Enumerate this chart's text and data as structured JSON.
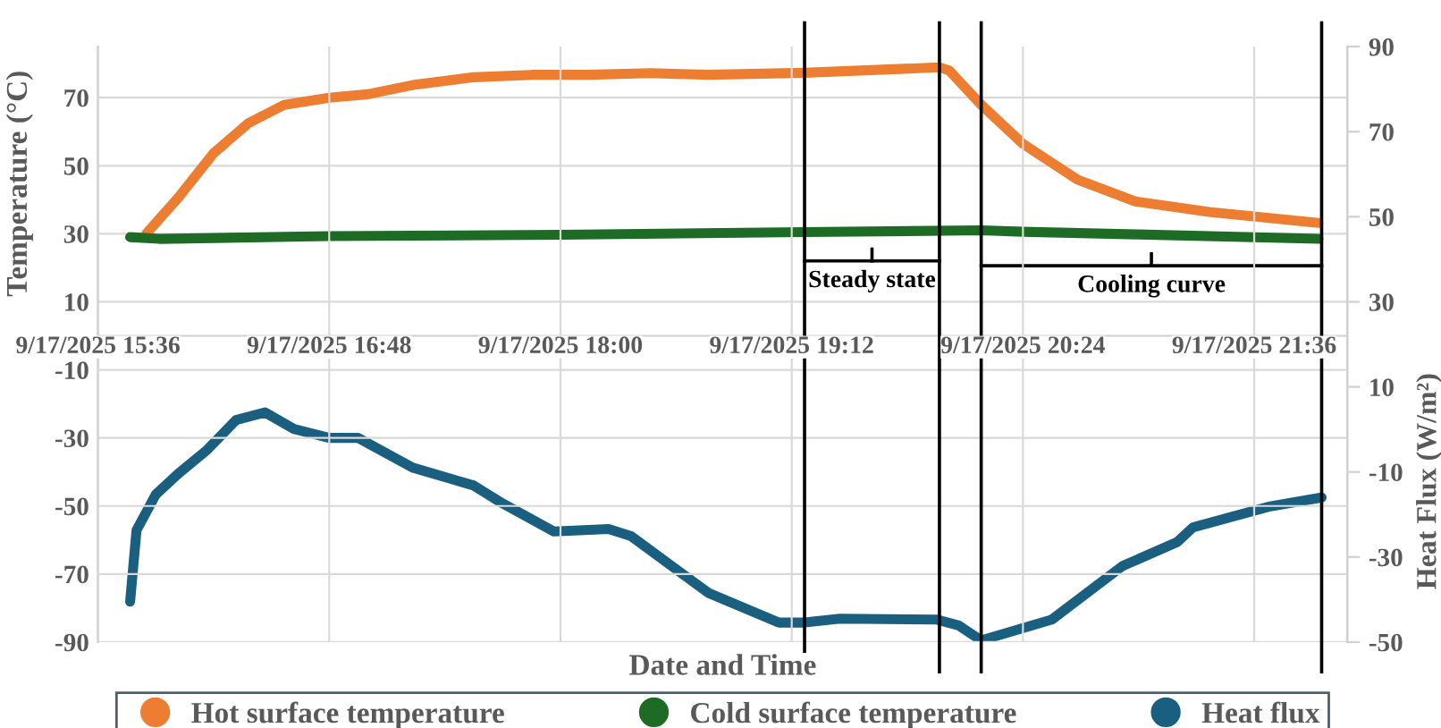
{
  "chart_data": {
    "type": "line",
    "xlabel": "Date and Time",
    "ylabel": "Temperature (°C)",
    "y2label": "Heat Flux (W/m²)",
    "xlim": [
      "2025-09-17T15:36",
      "2025-09-17T22:05"
    ],
    "xticks": [
      {
        "value": "2025-09-17T15:36",
        "label": "9/17/2025 15:36"
      },
      {
        "value": "2025-09-17T16:48",
        "label": "9/17/2025 16:48"
      },
      {
        "value": "2025-09-17T18:00",
        "label": "9/17/2025 18:00"
      },
      {
        "value": "2025-09-17T19:12",
        "label": "9/17/2025 19:12"
      },
      {
        "value": "2025-09-17T20:24",
        "label": "9/17/2025 20:24"
      },
      {
        "value": "2025-09-17T21:36",
        "label": "9/17/2025 21:36"
      }
    ],
    "ylim": [
      -90,
      85
    ],
    "yticks": [
      -90,
      -70,
      -50,
      -30,
      -10,
      10,
      30,
      50,
      70
    ],
    "y2lim": [
      -50,
      90
    ],
    "y2ticks": [
      -50,
      -30,
      -10,
      10,
      30,
      50,
      70,
      90
    ],
    "grid": true,
    "legend": "bottom",
    "marker": "none",
    "line_style": "solid",
    "series": [
      {
        "name": "Hot surface temperature",
        "color": "#ed7d31",
        "x": [
          "2025-09-17T15:51",
          "2025-09-17T16:01",
          "2025-09-17T16:12",
          "2025-09-17T16:23",
          "2025-09-17T16:34",
          "2025-09-17T16:48",
          "2025-09-17T17:00",
          "2025-09-17T17:14",
          "2025-09-17T17:33",
          "2025-09-17T17:51",
          "2025-09-17T18:09",
          "2025-09-17T18:28",
          "2025-09-17T18:46",
          "2025-09-17T19:16",
          "2025-09-17T19:58",
          "2025-09-17T20:01",
          "2025-09-17T20:11",
          "2025-09-17T20:24",
          "2025-09-17T20:41",
          "2025-09-17T20:59",
          "2025-09-17T21:22",
          "2025-09-17T21:56"
        ],
        "values": [
          30,
          40.6,
          53.7,
          62.6,
          67.9,
          70,
          71,
          73.7,
          76,
          76.7,
          76.7,
          77.2,
          76.7,
          77.3,
          78.9,
          78,
          67.9,
          56.4,
          45.9,
          39.5,
          36.4,
          33.2
        ]
      },
      {
        "name": "Cold surface temperature",
        "color": "#1e6b25",
        "x": [
          "2025-09-17T15:46",
          "2025-09-17T15:55",
          "2025-09-17T16:48",
          "2025-09-17T18:00",
          "2025-09-17T19:16",
          "2025-09-17T20:11",
          "2025-09-17T20:24",
          "2025-09-17T21:00",
          "2025-09-17T21:56"
        ],
        "values": [
          29,
          28.5,
          29.3,
          29.7,
          30.5,
          31,
          30.6,
          29.8,
          28.5
        ]
      },
      {
        "name": "Heat flux",
        "color": "#1a5f7f",
        "axis": "y2",
        "x": [
          "2025-09-17T15:46",
          "2025-09-17T15:48",
          "2025-09-17T15:54",
          "2025-09-17T16:01",
          "2025-09-17T16:10",
          "2025-09-17T16:19",
          "2025-09-17T16:28",
          "2025-09-17T16:37",
          "2025-09-17T16:48",
          "2025-09-17T16:57",
          "2025-09-17T17:14",
          "2025-09-17T17:33",
          "2025-09-17T17:42",
          "2025-09-17T17:58",
          "2025-09-17T18:15",
          "2025-09-17T18:22",
          "2025-09-17T18:46",
          "2025-09-17T19:08",
          "2025-09-17T19:16",
          "2025-09-17T19:27",
          "2025-09-17T19:57",
          "2025-09-17T20:04",
          "2025-09-17T20:11",
          "2025-09-17T20:33",
          "2025-09-17T20:55",
          "2025-09-17T21:12",
          "2025-09-17T21:17",
          "2025-09-17T21:41",
          "2025-09-17T21:57"
        ],
        "values": [
          -40.5,
          -23.7,
          -15.3,
          -10.4,
          -4.8,
          2.2,
          4.0,
          0.1,
          -2.0,
          -2.0,
          -9.0,
          -13.2,
          -17.4,
          -24,
          -23.4,
          -25.1,
          -38.4,
          -45.4,
          -45.4,
          -44.5,
          -44.7,
          -46.1,
          -49.6,
          -44.7,
          -32.1,
          -26.5,
          -23,
          -18.1,
          -16
        ]
      }
    ],
    "ref_lines": [
      {
        "axis": "x",
        "value": "2025-09-17T19:16",
        "color": "#000000"
      },
      {
        "axis": "x",
        "value": "2025-09-17T19:58",
        "color": "#000000"
      },
      {
        "axis": "x",
        "value": "2025-09-17T20:11",
        "color": "#000000"
      },
      {
        "axis": "x",
        "value": "2025-09-17T21:57",
        "color": "#000000"
      }
    ],
    "annotations": [
      "Steady state",
      "Cooling curve"
    ]
  }
}
